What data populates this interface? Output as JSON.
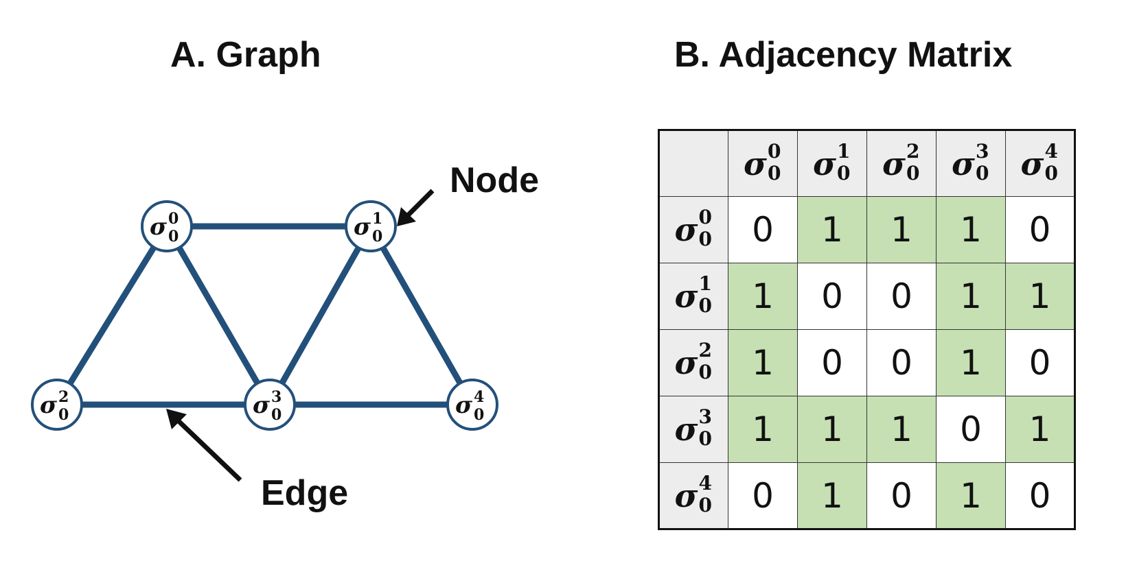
{
  "titles": {
    "graph": "A.  Graph",
    "matrix": "B.  Adjacency Matrix"
  },
  "graph": {
    "nodes": [
      {
        "id": "n0",
        "symbol": "σ",
        "sup": "0",
        "sub": "0"
      },
      {
        "id": "n1",
        "symbol": "σ",
        "sup": "1",
        "sub": "0"
      },
      {
        "id": "n2",
        "symbol": "σ",
        "sup": "2",
        "sub": "0"
      },
      {
        "id": "n3",
        "symbol": "σ",
        "sup": "3",
        "sub": "0"
      },
      {
        "id": "n4",
        "symbol": "σ",
        "sup": "4",
        "sub": "0"
      }
    ],
    "edges": [
      [
        "n0",
        "n1"
      ],
      [
        "n0",
        "n2"
      ],
      [
        "n0",
        "n3"
      ],
      [
        "n1",
        "n3"
      ],
      [
        "n1",
        "n4"
      ],
      [
        "n2",
        "n3"
      ],
      [
        "n3",
        "n4"
      ]
    ],
    "annotations": {
      "node": "Node",
      "edge": "Edge"
    },
    "colors": {
      "edge": "#23507a",
      "node_border": "#23507a",
      "node_fill": "#ffffff"
    }
  },
  "matrix": {
    "headers": [
      {
        "symbol": "σ",
        "sup": "0",
        "sub": "0"
      },
      {
        "symbol": "σ",
        "sup": "1",
        "sub": "0"
      },
      {
        "symbol": "σ",
        "sup": "2",
        "sub": "0"
      },
      {
        "symbol": "σ",
        "sup": "3",
        "sub": "0"
      },
      {
        "symbol": "σ",
        "sup": "4",
        "sub": "0"
      }
    ],
    "rows": [
      [
        0,
        1,
        1,
        1,
        0
      ],
      [
        1,
        0,
        0,
        1,
        1
      ],
      [
        1,
        0,
        0,
        1,
        0
      ],
      [
        1,
        1,
        1,
        0,
        1
      ],
      [
        0,
        1,
        0,
        1,
        0
      ]
    ],
    "colors": {
      "one_fill": "#c6e0b4",
      "zero_fill": "#ffffff",
      "header_fill": "#ededed"
    }
  }
}
